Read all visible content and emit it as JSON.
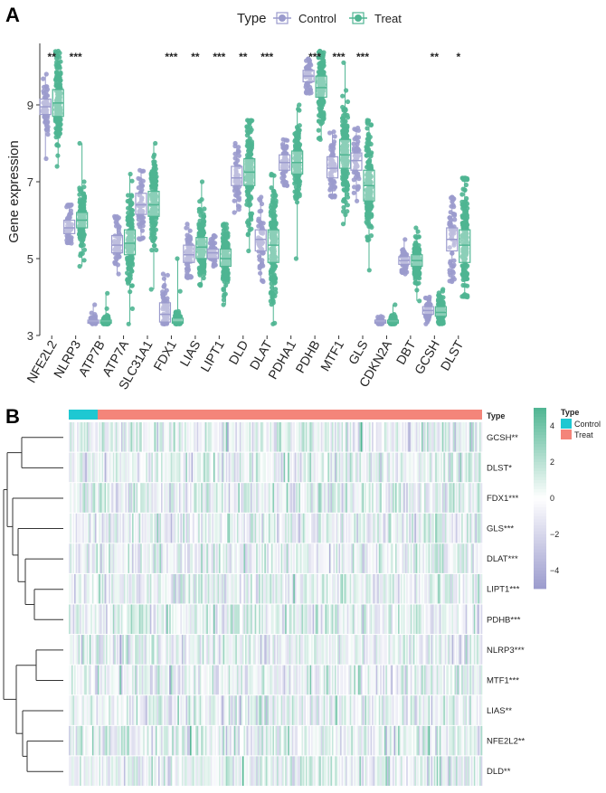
{
  "panel_a_label": "A",
  "panel_b_label": "B",
  "legend": {
    "title": "Type",
    "items": [
      {
        "name": "Control",
        "color": "#9b9bcd"
      },
      {
        "name": "Treat",
        "color": "#4fb592"
      }
    ]
  },
  "chart_data": [
    {
      "type": "box",
      "xlabel": "",
      "ylabel": "Gene expression",
      "ylim": [
        3,
        10.6
      ],
      "yticks": [
        3,
        5,
        7,
        9
      ],
      "categories": [
        "NFE2L2",
        "NLRP3",
        "ATP7B",
        "ATP7A",
        "SLC31A1",
        "FDX1",
        "LIAS",
        "LIPT1",
        "DLD",
        "DLAT",
        "PDHA1",
        "PDHB",
        "MTF1",
        "GLS",
        "CDKN2A",
        "DBT",
        "GCSH",
        "DLST"
      ],
      "significance": [
        "**",
        "***",
        "",
        "",
        "",
        "***",
        "**",
        "***",
        "**",
        "***",
        "",
        "***",
        "***",
        "***",
        "",
        "",
        "**",
        "*"
      ],
      "series": [
        {
          "name": "Control",
          "color": "#9b9bcd",
          "stats": [
            {
              "min": 7.6,
              "q1": 8.75,
              "median": 8.95,
              "q3": 9.15,
              "max": 9.8
            },
            {
              "min": 5.4,
              "q1": 5.65,
              "median": 5.8,
              "q3": 6.0,
              "max": 6.4
            },
            {
              "min": 3.3,
              "q1": 3.32,
              "median": 3.35,
              "q3": 3.4,
              "max": 3.8
            },
            {
              "min": 4.6,
              "q1": 5.15,
              "median": 5.35,
              "q3": 5.6,
              "max": 6.1
            },
            {
              "min": 5.5,
              "q1": 6.15,
              "median": 6.4,
              "q3": 6.7,
              "max": 7.3
            },
            {
              "min": 3.3,
              "q1": 3.35,
              "median": 3.55,
              "q3": 3.85,
              "max": 4.6
            },
            {
              "min": 4.5,
              "q1": 4.9,
              "median": 5.1,
              "q3": 5.35,
              "max": 5.9
            },
            {
              "min": 4.8,
              "q1": 5.0,
              "median": 5.15,
              "q3": 5.25,
              "max": 5.6
            },
            {
              "min": 6.2,
              "q1": 6.9,
              "median": 7.1,
              "q3": 7.4,
              "max": 8.0
            },
            {
              "min": 4.4,
              "q1": 5.2,
              "median": 5.5,
              "q3": 5.75,
              "max": 6.6
            },
            {
              "min": 6.9,
              "q1": 7.3,
              "median": 7.5,
              "q3": 7.7,
              "max": 8.1
            },
            {
              "min": 9.3,
              "q1": 9.6,
              "median": 9.75,
              "q3": 9.9,
              "max": 10.2
            },
            {
              "min": 6.6,
              "q1": 7.1,
              "median": 7.35,
              "q3": 7.65,
              "max": 8.3
            },
            {
              "min": 6.5,
              "q1": 7.3,
              "median": 7.55,
              "q3": 7.75,
              "max": 8.4
            },
            {
              "min": 3.3,
              "q1": 3.32,
              "median": 3.35,
              "q3": 3.4,
              "max": 3.5
            },
            {
              "min": 4.6,
              "q1": 4.85,
              "median": 4.95,
              "q3": 5.05,
              "max": 5.5
            },
            {
              "min": 3.3,
              "q1": 3.55,
              "median": 3.65,
              "q3": 3.75,
              "max": 4.0
            },
            {
              "min": 4.4,
              "q1": 5.2,
              "median": 5.5,
              "q3": 5.8,
              "max": 6.6
            }
          ]
        },
        {
          "name": "Treat",
          "color": "#4fb592",
          "stats": [
            {
              "min": 7.4,
              "q1": 8.7,
              "median": 9.05,
              "q3": 9.4,
              "max": 10.4
            },
            {
              "min": 4.8,
              "q1": 5.8,
              "median": 6.0,
              "q3": 6.2,
              "max": 8.0
            },
            {
              "min": 3.3,
              "q1": 3.32,
              "median": 3.35,
              "q3": 3.4,
              "max": 4.1
            },
            {
              "min": 3.3,
              "q1": 5.1,
              "median": 5.4,
              "q3": 5.75,
              "max": 7.2
            },
            {
              "min": 4.2,
              "q1": 6.1,
              "median": 6.4,
              "q3": 6.75,
              "max": 8.0
            },
            {
              "min": 3.3,
              "q1": 3.32,
              "median": 3.35,
              "q3": 3.45,
              "max": 5.0
            },
            {
              "min": 4.3,
              "q1": 5.0,
              "median": 5.3,
              "q3": 5.55,
              "max": 7.0
            },
            {
              "min": 3.8,
              "q1": 4.8,
              "median": 5.0,
              "q3": 5.25,
              "max": 5.9
            },
            {
              "min": 5.2,
              "q1": 6.9,
              "median": 7.25,
              "q3": 7.6,
              "max": 8.6
            },
            {
              "min": 3.3,
              "q1": 4.9,
              "median": 5.35,
              "q3": 5.75,
              "max": 7.2
            },
            {
              "min": 5.0,
              "q1": 7.2,
              "median": 7.5,
              "q3": 7.8,
              "max": 9.0
            },
            {
              "min": 8.1,
              "q1": 9.2,
              "median": 9.45,
              "q3": 9.75,
              "max": 10.4
            },
            {
              "min": 5.9,
              "q1": 7.35,
              "median": 7.7,
              "q3": 8.1,
              "max": 10.1
            },
            {
              "min": 4.7,
              "q1": 6.5,
              "median": 6.9,
              "q3": 7.3,
              "max": 8.6
            },
            {
              "min": 3.3,
              "q1": 3.32,
              "median": 3.35,
              "q3": 3.4,
              "max": 3.8
            },
            {
              "min": 3.9,
              "q1": 4.8,
              "median": 4.95,
              "q3": 5.1,
              "max": 5.8
            },
            {
              "min": 3.3,
              "q1": 3.5,
              "median": 3.6,
              "q3": 3.75,
              "max": 4.2
            },
            {
              "min": 4.0,
              "q1": 4.9,
              "median": 5.35,
              "q3": 5.75,
              "max": 7.1
            }
          ]
        }
      ]
    },
    {
      "type": "heatmap",
      "title": "",
      "annotation_track": "Type",
      "annotation_groups": [
        {
          "name": "Control",
          "color": "#1ec8d2",
          "fraction": 0.07
        },
        {
          "name": "Treat",
          "color": "#f4857a",
          "fraction": 0.93
        }
      ],
      "rows": [
        "GCSH**",
        "DLST*",
        "FDX1***",
        "GLS***",
        "DLAT***",
        "LIPT1***",
        "PDHB***",
        "NLRP3***",
        "MTF1***",
        "LIAS**",
        "NFE2L2**",
        "DLD**"
      ],
      "color_scale": {
        "min": -5,
        "max": 5,
        "ticks": [
          4,
          2,
          0,
          -2,
          -4
        ],
        "low_color": "#9b9bcd",
        "mid_color": "#ffffff",
        "high_color": "#4fb592"
      },
      "legend_title": "Type",
      "legend_items": [
        {
          "name": "Control",
          "color": "#1ec8d2"
        },
        {
          "name": "Treat",
          "color": "#f4857a"
        }
      ]
    }
  ]
}
